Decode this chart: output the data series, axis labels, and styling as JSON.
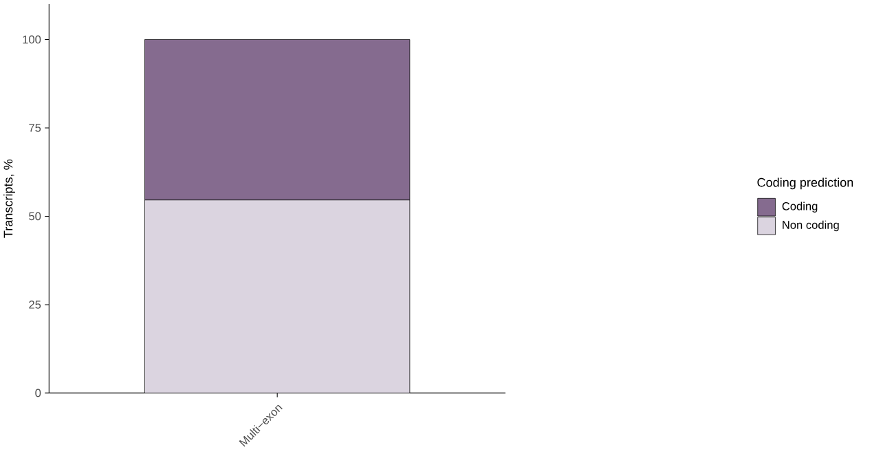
{
  "chart_data": {
    "type": "bar",
    "stacked": true,
    "categories": [
      "Multi−exon"
    ],
    "ylabel": "Transcripts, %",
    "legend_title": "Coding prediction",
    "ylim": [
      0,
      110
    ],
    "yticks": [
      0,
      25,
      50,
      75,
      100
    ],
    "legend": "right",
    "series": [
      {
        "name": "Non coding",
        "color": "#dbd4e0",
        "values": [
          54.6
        ]
      },
      {
        "name": "Coding",
        "color": "#856b8f",
        "values": [
          45.4
        ]
      }
    ]
  }
}
